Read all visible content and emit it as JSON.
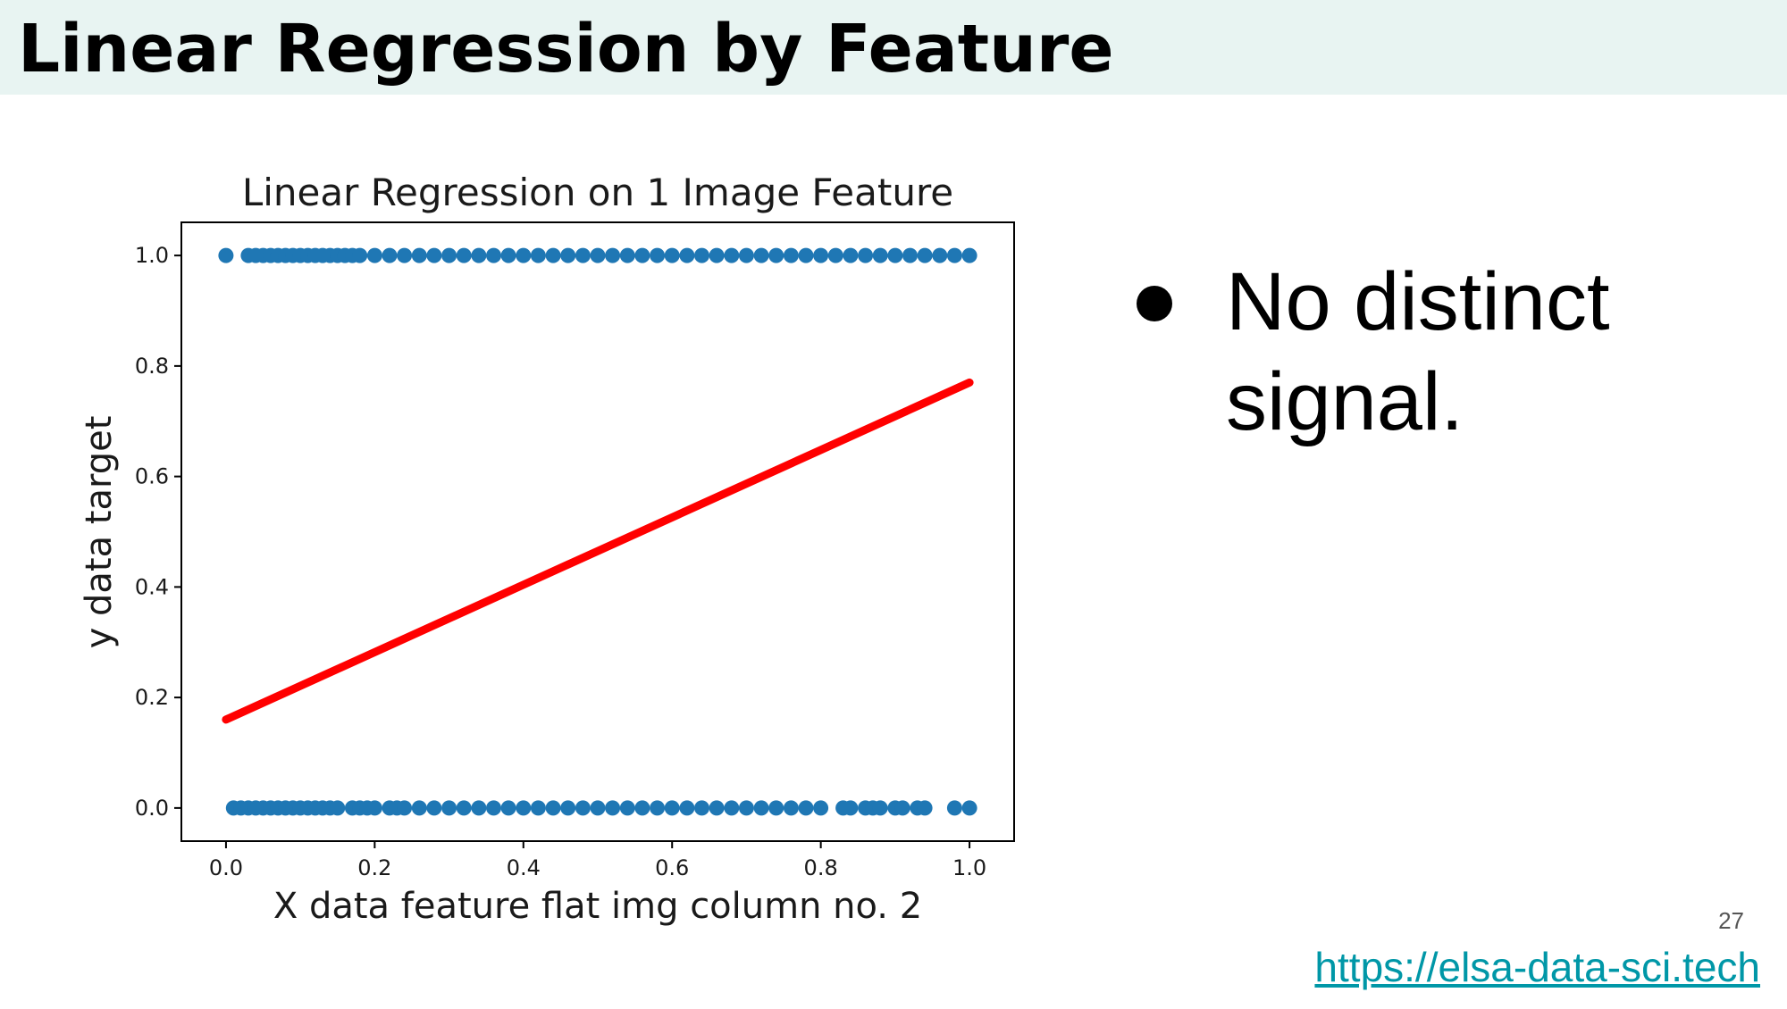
{
  "slide": {
    "title": "Linear Regression by Feature",
    "bullet": "No distinct signal.",
    "page_number": "27",
    "link": "https://elsa-data-sci.tech"
  },
  "colors": {
    "title_band": "#e8f4f2",
    "points": "#1f77b4",
    "fit_line": "#ff0000",
    "link": "#0097a7"
  },
  "chart_data": {
    "type": "scatter",
    "title": "Linear Regression on 1 Image Feature",
    "xlabel": "X data feature flat img column no. 2",
    "ylabel": "y data target",
    "xlim": [
      -0.06,
      1.06
    ],
    "ylim": [
      -0.06,
      1.06
    ],
    "xticks": [
      "0.0",
      "0.2",
      "0.4",
      "0.6",
      "0.8",
      "1.0"
    ],
    "yticks": [
      "0.0",
      "0.2",
      "0.4",
      "0.6",
      "0.8",
      "1.0"
    ],
    "grid": false,
    "legend": "none",
    "series": [
      {
        "kind": "points",
        "y": 1,
        "x": [
          0.0,
          0.03,
          0.04,
          0.05,
          0.06,
          0.07,
          0.08,
          0.09,
          0.1,
          0.11,
          0.12,
          0.13,
          0.14,
          0.15,
          0.16,
          0.17,
          0.18,
          0.2,
          0.22,
          0.24,
          0.26,
          0.28,
          0.3,
          0.32,
          0.34,
          0.36,
          0.38,
          0.4,
          0.42,
          0.44,
          0.46,
          0.48,
          0.5,
          0.52,
          0.54,
          0.56,
          0.58,
          0.6,
          0.62,
          0.64,
          0.66,
          0.68,
          0.7,
          0.72,
          0.74,
          0.76,
          0.78,
          0.8,
          0.82,
          0.84,
          0.86,
          0.88,
          0.9,
          0.92,
          0.94,
          0.96,
          0.98,
          1.0
        ]
      },
      {
        "kind": "points",
        "y": 0,
        "x": [
          0.01,
          0.02,
          0.03,
          0.04,
          0.05,
          0.06,
          0.07,
          0.08,
          0.09,
          0.1,
          0.11,
          0.12,
          0.13,
          0.14,
          0.15,
          0.17,
          0.18,
          0.19,
          0.2,
          0.22,
          0.23,
          0.24,
          0.26,
          0.28,
          0.3,
          0.32,
          0.34,
          0.36,
          0.38,
          0.4,
          0.42,
          0.44,
          0.46,
          0.48,
          0.5,
          0.52,
          0.54,
          0.56,
          0.58,
          0.6,
          0.62,
          0.64,
          0.66,
          0.68,
          0.7,
          0.72,
          0.74,
          0.76,
          0.78,
          0.8,
          0.83,
          0.84,
          0.86,
          0.87,
          0.88,
          0.9,
          0.91,
          0.93,
          0.94,
          0.98,
          1.0
        ]
      },
      {
        "kind": "line",
        "x": [
          0.0,
          1.0
        ],
        "y": [
          0.16,
          0.77
        ]
      }
    ]
  }
}
